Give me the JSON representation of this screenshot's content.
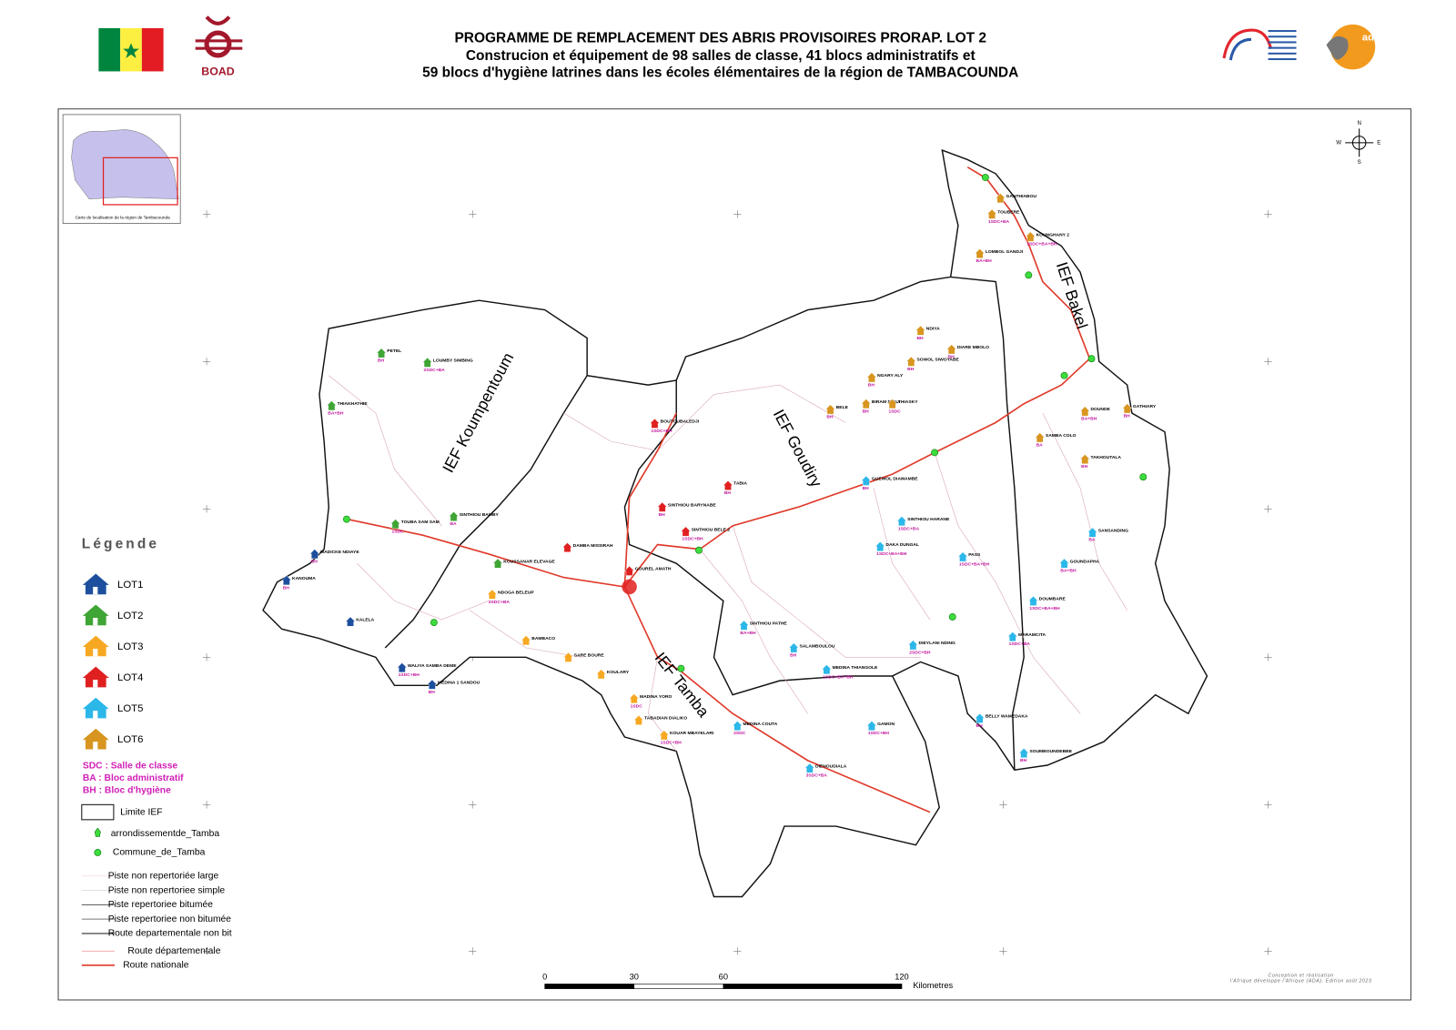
{
  "header": {
    "title": "PROGRAMME DE REMPLACEMENT DES ABRIS PROVISOIRES PRORAP. LOT 2",
    "subtitle_lines": [
      "Construcion et équipement de 98 salles de classe, 41 blocs administratifs et",
      "59 blocs d'hygiène latrines dans les écoles élémentaires de la région de TAMBACOUNDA"
    ],
    "logos": [
      "BOAD",
      "ada"
    ]
  },
  "inset_caption": "Carte de localisation de la région de Tambacounda",
  "regions": [
    {
      "label": "IEF Koumpentoum"
    },
    {
      "label": "IEF Goudiry"
    },
    {
      "label": "IEF Bakel"
    },
    {
      "label": "IEF Tamba"
    }
  ],
  "legend": {
    "title": "Légende",
    "lots": [
      {
        "label": "LOT1",
        "color": "#1d4f9e"
      },
      {
        "label": "LOT2",
        "color": "#3fa535"
      },
      {
        "label": "LOT3",
        "color": "#f7a823"
      },
      {
        "label": "LOT4",
        "color": "#e02020"
      },
      {
        "label": "LOT5",
        "color": "#2cb7e9"
      },
      {
        "label": "LOT6",
        "color": "#d8951f"
      }
    ],
    "abbreviations": [
      "SDC : Salle de classe",
      "BA : Bloc administratif",
      "BH : Bloc d'hygiène"
    ],
    "symbols": [
      "Limite IEF",
      "arrondissementde_Tamba",
      "Commune_de_Tamba"
    ],
    "roads": [
      "Piste non repertoriée large",
      "Piste non repertoriee simple",
      "Piste repertoriee bitumée",
      "Piste repertoriee non bitumée",
      "Route departementale non bit",
      "Route départementale",
      "Route nationale"
    ]
  },
  "scale": {
    "ticks": [
      0,
      30,
      60,
      120
    ],
    "unit": "Kilometres"
  },
  "credits": [
    "Conception et réalisation",
    "l'Afrique développe l'Afrique (ADA). Edition août 2023"
  ],
  "places": [
    {
      "name": "PETEL",
      "lot": 2,
      "works": "BH"
    },
    {
      "name": "LOUMBY SIMBING",
      "lot": 2,
      "works": "2SDC+BA"
    },
    {
      "name": "THIAKHATHIE",
      "lot": 2,
      "works": "BA+BH"
    },
    {
      "name": "TOUBA SAM SAM",
      "lot": 2,
      "works": "1SDC"
    },
    {
      "name": "SINTHIOU BAMBY",
      "lot": 2,
      "works": "BA"
    },
    {
      "name": "KOUSSANAR ELEVAGE",
      "lot": 2
    },
    {
      "name": "MADICKE NDIAYE",
      "lot": 1,
      "works": "BH"
    },
    {
      "name": "KANOUMA",
      "lot": 1,
      "works": "BH"
    },
    {
      "name": "KALELA",
      "lot": 1
    },
    {
      "name": "WALIYA SAMBA DEME",
      "lot": 1,
      "works": "1SDC+BH"
    },
    {
      "name": "MEDINA 1 SANDOU",
      "lot": 1,
      "works": "BH"
    },
    {
      "name": "NDOGA BELEUP",
      "lot": 3,
      "works": "2SDC+BA"
    },
    {
      "name": "BAMBACO",
      "lot": 3
    },
    {
      "name": "SARE BOURE",
      "lot": 3
    },
    {
      "name": "KOULARY",
      "lot": 3
    },
    {
      "name": "MADINA YORO",
      "lot": 3,
      "works": "1SDC"
    },
    {
      "name": "TABADIAN DIALIKO",
      "lot": 3
    },
    {
      "name": "KOUAR MBAYELARI",
      "lot": 3,
      "works": "1SDC+BH"
    },
    {
      "name": "DAMBA MISSIRAH",
      "lot": 4
    },
    {
      "name": "BOUTOUBALEDJI",
      "lot": 4,
      "works": "1SDC+BH"
    },
    {
      "name": "SINTHIOU BARYNABE",
      "lot": 4,
      "works": "BH"
    },
    {
      "name": "SINTHIOU BELE 2",
      "lot": 4,
      "works": "1SDC+BH"
    },
    {
      "name": "TABIA",
      "lot": 4,
      "works": "BH"
    },
    {
      "name": "GOUREL AMATH",
      "lot": 4
    },
    {
      "name": "SINTHIOU HARANE",
      "lot": 5,
      "works": "1SDC+BA"
    },
    {
      "name": "DAKA DUNGAL",
      "lot": 5,
      "works": "1SDC+BA+BH"
    },
    {
      "name": "PASS",
      "lot": 5,
      "works": "1SDC+BA+BH"
    },
    {
      "name": "SINTHIOU PATHE",
      "lot": 5,
      "works": "BA+BH"
    },
    {
      "name": "SALAMBOULOU",
      "lot": 5,
      "works": "BH"
    },
    {
      "name": "MEDINA THIANGOLE",
      "lot": 5,
      "works": "1SDC+BA+BH"
    },
    {
      "name": "MEDINA COUTA",
      "lot": 5,
      "works": "2SDC"
    },
    {
      "name": "DIENOUDIALA",
      "lot": 5,
      "works": "3SDC+BA"
    },
    {
      "name": "GAMON",
      "lot": 5,
      "works": "1SDC+BH"
    },
    {
      "name": "DIEYLANI NDING",
      "lot": 5,
      "works": "2SDC+BH"
    },
    {
      "name": "MARAMCITA",
      "lot": 5,
      "works": "1SDC+BA"
    },
    {
      "name": "BELLY WAMEDAKA",
      "lot": 5,
      "works": "BH"
    },
    {
      "name": "DOUMBARE",
      "lot": 5,
      "works": "1SDC+BA+BH"
    },
    {
      "name": "GOUNDAPHA",
      "lot": 5,
      "works": "BA+BH"
    },
    {
      "name": "SANSANDING",
      "lot": 5,
      "works": "BA"
    },
    {
      "name": "SOUMBOUNDEBBE",
      "lot": 5,
      "works": "BH"
    },
    {
      "name": "GUEWOL DIAWAMBE",
      "lot": 5,
      "works": "BH"
    },
    {
      "name": "NDIYA",
      "lot": 6,
      "works": "BH"
    },
    {
      "name": "DIARE MBOLO",
      "lot": 6,
      "works": "BH"
    },
    {
      "name": "SOWOL SIWOYABE",
      "lot": 6,
      "works": "BH"
    },
    {
      "name": "NGARY ALY",
      "lot": 6,
      "works": "BH"
    },
    {
      "name": "BELE",
      "lot": 6,
      "works": "BH"
    },
    {
      "name": "BIRAM DIGUI",
      "lot": 6,
      "works": "BH"
    },
    {
      "name": "THIASKY",
      "lot": 6,
      "works": "1SDC"
    },
    {
      "name": "GATHIARY",
      "lot": 6,
      "works": "BH"
    },
    {
      "name": "TAKHOUTALA",
      "lot": 6,
      "works": "BH"
    },
    {
      "name": "SAMBA COLO",
      "lot": 6,
      "works": "BA"
    },
    {
      "name": "DOUNDE",
      "lot": 6,
      "works": "BA+BH"
    },
    {
      "name": "KOUNGHANY 2",
      "lot": 6,
      "works": "1SDC+BA+BH"
    },
    {
      "name": "GANTHIABOU",
      "lot": 6
    },
    {
      "name": "TOUBERE",
      "lot": 6,
      "works": "1SDC+BA"
    },
    {
      "name": "LOMBOL GANDJI",
      "lot": 6,
      "works": "BA+BH"
    }
  ]
}
